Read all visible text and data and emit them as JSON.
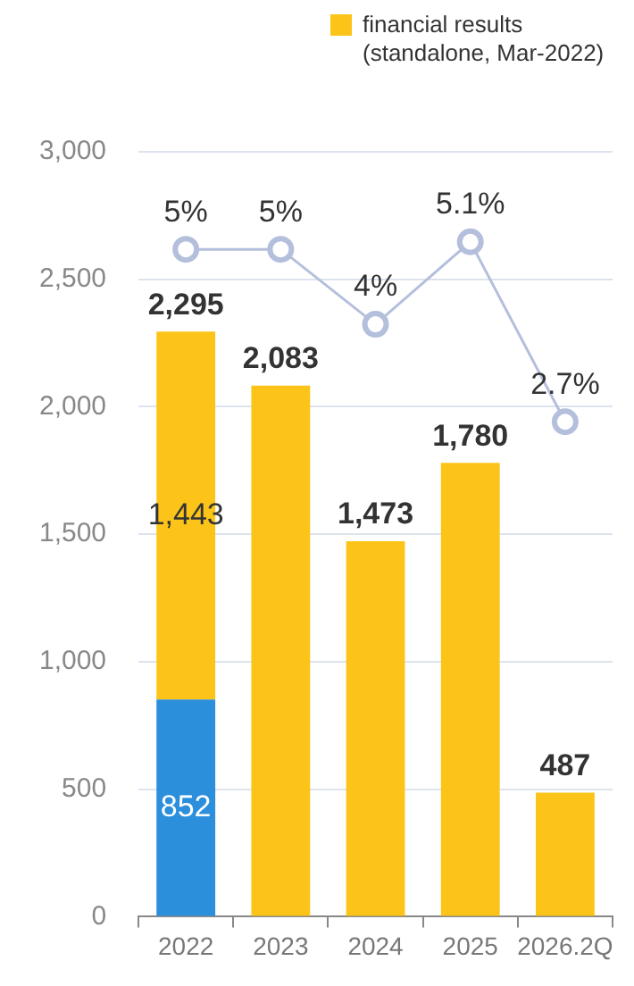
{
  "chart_data": {
    "type": "bar",
    "stacked": true,
    "categories": [
      "2022",
      "2023",
      "2024",
      "2025",
      "2026.2Q"
    ],
    "series": [
      {
        "color": "#2b8fdc",
        "values": [
          852,
          null,
          null,
          null,
          null
        ],
        "value_labels": [
          "852",
          null,
          null,
          null,
          null
        ]
      },
      {
        "name": "financial results (standalone, Mar-2022)",
        "color": "#fcc419",
        "values": [
          1443,
          2083,
          1473,
          1780,
          487
        ],
        "value_labels": [
          "1,443",
          null,
          null,
          null,
          null
        ]
      },
      {
        "type": "line",
        "axis": "y2",
        "color": "#b4bfdc",
        "values": [
          5,
          5,
          4,
          5.1,
          2.7
        ],
        "value_labels": [
          "5%",
          "5%",
          "4%",
          "5.1%",
          "2.7%"
        ]
      }
    ],
    "totals": [
      "2,295",
      "2,083",
      "1,473",
      "1,780",
      "487"
    ],
    "ylim": [
      0,
      3000
    ],
    "yticks": [
      0,
      500,
      {
        "value": 1000,
        "label": "1,000"
      },
      {
        "value": 1500,
        "label": "1,500"
      },
      {
        "value": 2000,
        "label": "2,000"
      },
      {
        "value": 2500,
        "label": "2,500"
      },
      {
        "value": 3000,
        "label": "3,000"
      }
    ],
    "y2lim": [
      -3.9,
      6.3
    ],
    "grid": "y",
    "legend": "top right",
    "marker": "circle"
  }
}
